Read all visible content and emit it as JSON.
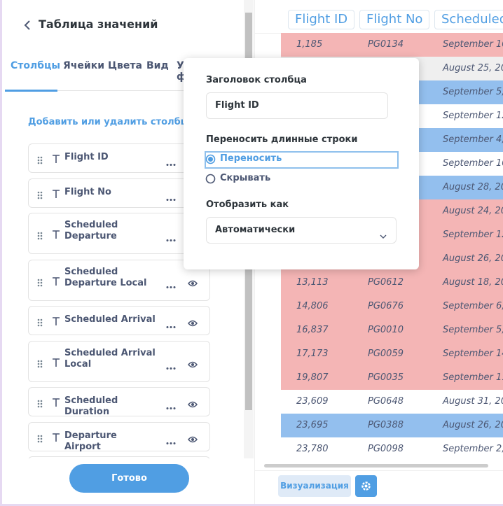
{
  "sidebar": {
    "title": "Таблица значений",
    "tabs": [
      "Столбцы",
      "Ячейки",
      "Цвета",
      "Вид",
      "Условное форматирование"
    ],
    "active_tab": 0,
    "add_link": "Добавить или удалить столбцы",
    "columns": [
      "Flight ID",
      "Flight No",
      "Scheduled Departure",
      "Scheduled Departure Local",
      "Scheduled Arrival",
      "Scheduled Arrival Local",
      "Scheduled Duration",
      "Departure Airport"
    ],
    "done_button": "Готово"
  },
  "popover": {
    "header_label": "Заголовок столбца",
    "header_input": "Flight ID",
    "wrap_label": "Переносить длинные строки",
    "wrap_options": [
      "Переносить",
      "Скрывать"
    ],
    "wrap_selected": 0,
    "display_label": "Отобразить как",
    "display_select": "Автоматически"
  },
  "table": {
    "headers": [
      "Flight ID",
      "Flight No",
      "Scheduled D"
    ],
    "rows": [
      {
        "id": "1,185",
        "no": "PG0134",
        "date": "September 10, 20",
        "bg": "#f4b5b5"
      },
      {
        "date": "August 25, 201",
        "bg": "#efefef"
      },
      {
        "date": "September 5, 20",
        "bg": "#93bfee"
      },
      {
        "date": "September 12,",
        "bg": "#ffffff"
      },
      {
        "date": "September 4, 20",
        "bg": "#93bfee"
      },
      {
        "date": "September 10,",
        "bg": "#ffffff"
      },
      {
        "date": "August 28, 201",
        "bg": "#93bfee"
      },
      {
        "date": "August 24, 201",
        "bg": "#f4b5b5"
      },
      {
        "date": "September 12,",
        "bg": "#f4b5b5"
      },
      {
        "date": "August 26, 201",
        "bg": "#f4b5b5"
      },
      {
        "id": "13,113",
        "no": "PG0612",
        "date": "August 18, 201",
        "bg": "#f4b5b5"
      },
      {
        "id": "14,806",
        "no": "PG0676",
        "date": "September 6, 2",
        "bg": "#f4b5b5"
      },
      {
        "id": "16,837",
        "no": "PG0010",
        "date": "September 5, 2",
        "bg": "#f4b5b5"
      },
      {
        "id": "17,173",
        "no": "PG0059",
        "date": "September 14,",
        "bg": "#f4b5b5"
      },
      {
        "id": "19,807",
        "no": "PG0035",
        "date": "September 11,",
        "bg": "#f4b5b5"
      },
      {
        "id": "23,609",
        "no": "PG0648",
        "date": "August 31, 201",
        "bg": "#ffffff"
      },
      {
        "id": "23,695",
        "no": "PG0388",
        "date": "August 26, 201",
        "bg": "#93bfee"
      },
      {
        "id": "23,780",
        "no": "PG0098",
        "date": "September 2, 2",
        "bg": "#ffffff"
      }
    ]
  },
  "footer": {
    "viz_button": "Визуализация"
  }
}
